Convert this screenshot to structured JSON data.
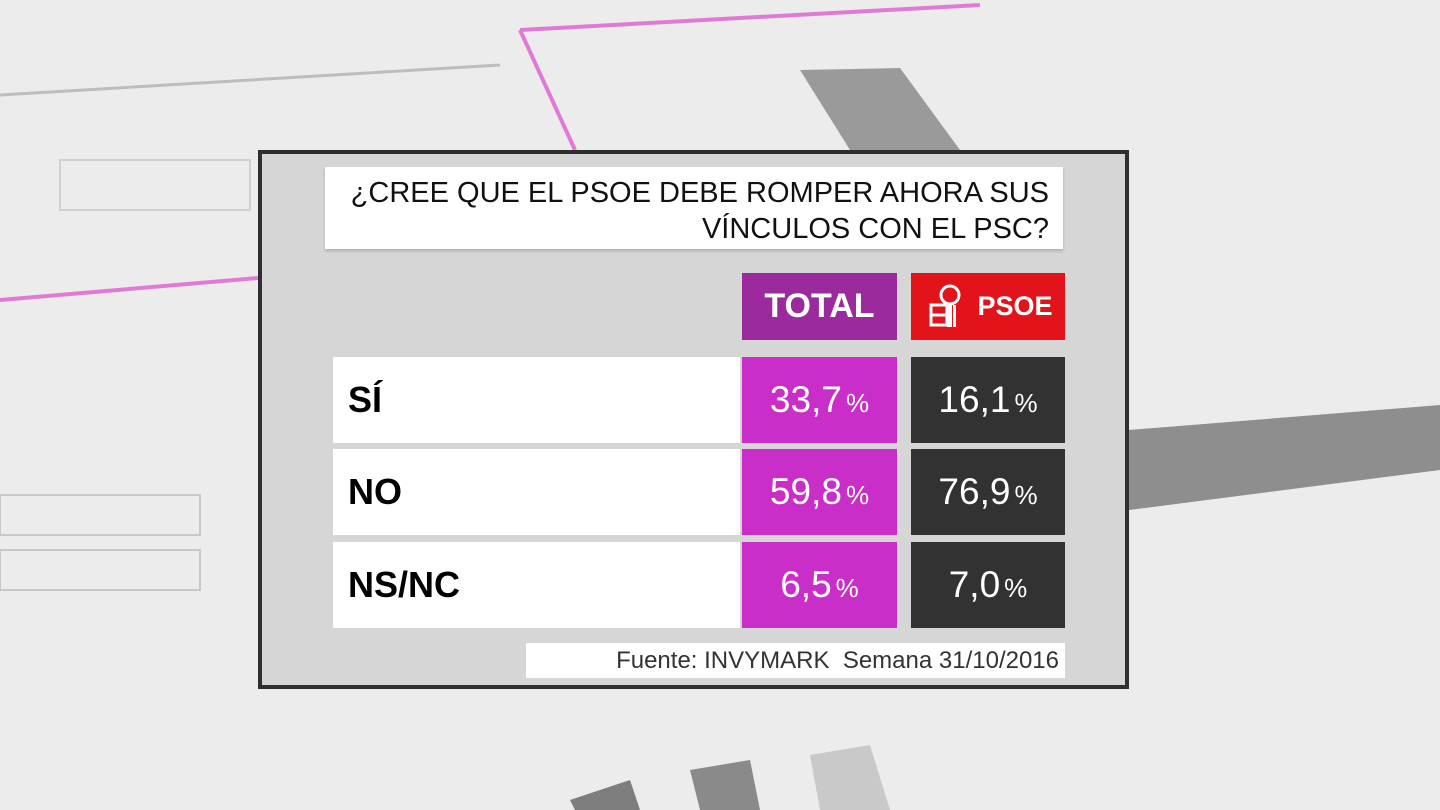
{
  "title_lines": [
    "¿CREE QUE EL PSOE DEBE ROMPER AHORA SUS",
    "VÍNCULOS CON EL PSC?"
  ],
  "columns": [
    "TOTAL",
    "PSOE"
  ],
  "rows": [
    {
      "label": "SÍ",
      "cells": [
        {
          "number": "33,7",
          "unit": "%"
        },
        {
          "number": "16,1",
          "unit": "%"
        }
      ]
    },
    {
      "label": "NO",
      "cells": [
        {
          "number": "59,8",
          "unit": "%"
        },
        {
          "number": "76,9",
          "unit": "%"
        }
      ]
    },
    {
      "label": "NS/NC",
      "cells": [
        {
          "number": "6,5",
          "unit": "%"
        },
        {
          "number": "7,0",
          "unit": "%"
        }
      ]
    }
  ],
  "source": "Fuente: INVYMARK  Semana 31/10/2016"
}
